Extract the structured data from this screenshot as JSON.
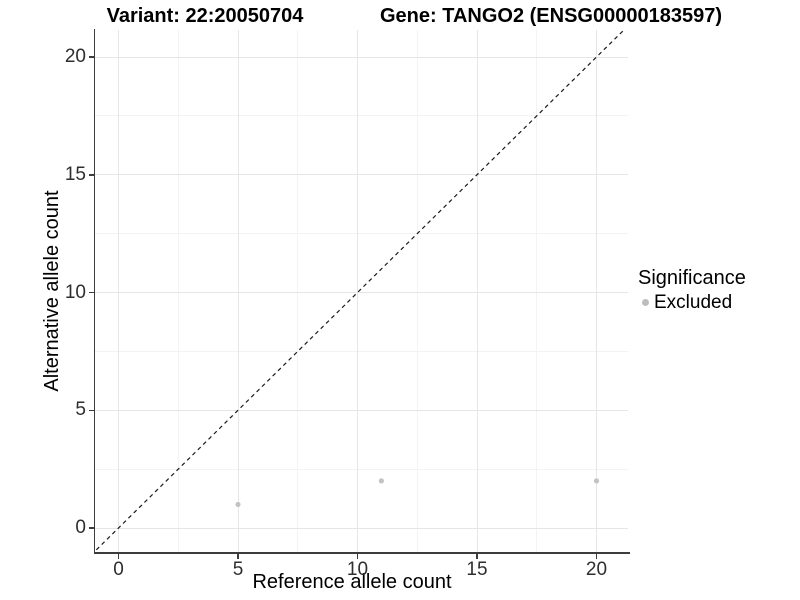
{
  "header": {
    "variant_title": "Variant: 22:20050704",
    "gene_title": "Gene: TANGO2 (ENSG00000183597)"
  },
  "chart_data": {
    "type": "scatter",
    "title": "Variant: 22:20050704 / Gene: TANGO2 (ENSG00000183597)",
    "xlabel": "Reference allele count",
    "ylabel": "Alternative allele count",
    "x_ticks": [
      0,
      5,
      10,
      15,
      20
    ],
    "y_ticks": [
      0,
      5,
      10,
      15,
      20
    ],
    "x_minor": [
      2.5,
      7.5,
      12.5,
      17.5
    ],
    "y_minor": [
      2.5,
      7.5,
      12.5,
      17.5
    ],
    "xlim": [
      -1.0,
      21.4
    ],
    "ylim": [
      -1.15,
      21.15
    ],
    "grid": "major+minor light gray on white, open right/top (L-shaped axes)",
    "identity_line": {
      "style": "dashed",
      "color": "#1a1a1a",
      "slope": 1,
      "intercept": 0
    },
    "series": [
      {
        "name": "Excluded",
        "color": "#c3c3c3",
        "points": [
          {
            "x": 5,
            "y": 1
          },
          {
            "x": 11,
            "y": 2
          },
          {
            "x": 20,
            "y": 2
          }
        ]
      }
    ],
    "legend": {
      "title": "Significance",
      "position": "right",
      "items": [
        {
          "label": "Excluded",
          "color": "#bdbdbd"
        }
      ]
    }
  }
}
